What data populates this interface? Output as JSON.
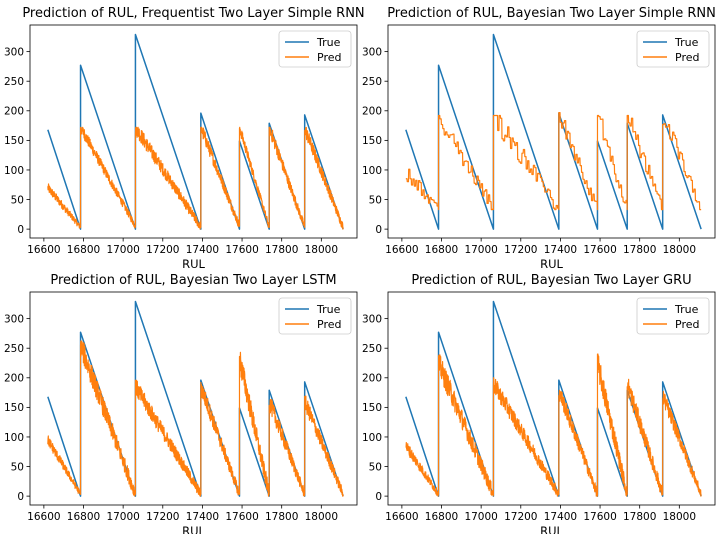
{
  "colors": {
    "true": "#1f77b4",
    "pred": "#ff7f0e"
  },
  "true_segments": [
    [
      [
        16620,
        168
      ],
      [
        16785,
        0
      ]
    ],
    [
      [
        16785,
        277
      ],
      [
        17062,
        0
      ]
    ],
    [
      [
        17062,
        329
      ],
      [
        17392,
        0
      ]
    ],
    [
      [
        17392,
        196
      ],
      [
        17587,
        0
      ]
    ],
    [
      [
        17587,
        149
      ],
      [
        17737,
        0
      ]
    ],
    [
      [
        17737,
        179
      ],
      [
        17916,
        0
      ]
    ],
    [
      [
        17916,
        193
      ],
      [
        18110,
        0
      ]
    ]
  ],
  "chart_data": [
    {
      "type": "line",
      "title": "Prediction of RUL, Frequentist Two Layer Simple RNN",
      "xlabel": "RUL",
      "ylabel": "",
      "xlim": [
        16530,
        18180
      ],
      "ylim": [
        -15,
        345
      ],
      "xticks": [
        16600,
        16800,
        17000,
        17200,
        17400,
        17600,
        17800,
        18000
      ],
      "yticks": [
        0,
        50,
        100,
        150,
        200,
        250,
        300
      ],
      "legend": {
        "position": "top-right",
        "entries": [
          "True",
          "Pred"
        ]
      },
      "series": [
        {
          "name": "True",
          "color": "#1f77b4"
        },
        {
          "name": "Pred",
          "color": "#ff7f0e",
          "segments": [
            {
              "x0": 16620,
              "x1": 16785,
              "start": 70,
              "end": 3,
              "cap": 200,
              "noise": 8
            },
            {
              "x0": 16785,
              "x1": 17062,
              "start": 172,
              "end": 5,
              "cap": 172,
              "noise": 10
            },
            {
              "x0": 17062,
              "x1": 17392,
              "start": 172,
              "end": 3,
              "cap": 172,
              "noise": 13
            },
            {
              "x0": 17392,
              "x1": 17587,
              "start": 172,
              "end": 5,
              "cap": 172,
              "noise": 12
            },
            {
              "x0": 17587,
              "x1": 17737,
              "start": 172,
              "end": 3,
              "cap": 172,
              "noise": 9
            },
            {
              "x0": 17737,
              "x1": 17916,
              "start": 172,
              "end": 3,
              "cap": 172,
              "noise": 12
            },
            {
              "x0": 17916,
              "x1": 18110,
              "start": 170,
              "end": 3,
              "cap": 172,
              "noise": 12
            }
          ]
        }
      ]
    },
    {
      "type": "line",
      "title": "Prediction of RUL, Bayesian Two Layer Simple RNN",
      "xlabel": "RUL",
      "ylabel": "",
      "xlim": [
        16530,
        18180
      ],
      "ylim": [
        -15,
        345
      ],
      "xticks": [
        16600,
        16800,
        17000,
        17200,
        17400,
        17600,
        17800,
        18000
      ],
      "yticks": [
        0,
        50,
        100,
        150,
        200,
        250,
        300
      ],
      "legend": {
        "position": "top-right",
        "entries": [
          "True",
          "Pred"
        ]
      },
      "series": [
        {
          "name": "True",
          "color": "#1f77b4"
        },
        {
          "name": "Pred",
          "color": "#ff7f0e",
          "segments": [
            {
              "x0": 16620,
              "x1": 16785,
              "start": 95,
              "end": 33,
              "floor": 33,
              "cap": 105,
              "noise": 14,
              "step": 6
            },
            {
              "x0": 16785,
              "x1": 17062,
              "start": 192,
              "end": 33,
              "floor": 33,
              "cap": 192,
              "noise": 18,
              "step": 6
            },
            {
              "x0": 17062,
              "x1": 17392,
              "start": 192,
              "end": 33,
              "floor": 33,
              "cap": 192,
              "noise": 20,
              "step": 6
            },
            {
              "x0": 17392,
              "x1": 17587,
              "start": 192,
              "end": 33,
              "floor": 33,
              "cap": 197,
              "noise": 18,
              "step": 6
            },
            {
              "x0": 17587,
              "x1": 17737,
              "start": 192,
              "end": 33,
              "floor": 33,
              "cap": 192,
              "noise": 18,
              "step": 6
            },
            {
              "x0": 17737,
              "x1": 17916,
              "start": 192,
              "end": 33,
              "floor": 33,
              "cap": 192,
              "noise": 18,
              "step": 6
            },
            {
              "x0": 17916,
              "x1": 18110,
              "start": 190,
              "end": 33,
              "floor": 33,
              "cap": 192,
              "noise": 18,
              "step": 6
            }
          ]
        }
      ]
    },
    {
      "type": "line",
      "title": "Prediction of RUL, Bayesian Two Layer LSTM",
      "xlabel": "RUL",
      "ylabel": "",
      "xlim": [
        16530,
        18180
      ],
      "ylim": [
        -15,
        345
      ],
      "xticks": [
        16600,
        16800,
        17000,
        17200,
        17400,
        17600,
        17800,
        18000
      ],
      "yticks": [
        0,
        50,
        100,
        150,
        200,
        250,
        300
      ],
      "legend": {
        "position": "top-right",
        "entries": [
          "True",
          "Pred"
        ]
      },
      "series": [
        {
          "name": "True",
          "color": "#1f77b4"
        },
        {
          "name": "Pred",
          "color": "#ff7f0e",
          "segments": [
            {
              "x0": 16620,
              "x1": 16785,
              "start": 95,
              "end": 3,
              "cap": 105,
              "noise": 9
            },
            {
              "x0": 16785,
              "x1": 17062,
              "start": 255,
              "end": 3,
              "cap": 262,
              "noise": 20
            },
            {
              "x0": 17062,
              "x1": 17392,
              "start": 185,
              "end": 3,
              "cap": 198,
              "noise": 15
            },
            {
              "x0": 17392,
              "x1": 17587,
              "start": 185,
              "end": 3,
              "cap": 192,
              "noise": 15
            },
            {
              "x0": 17587,
              "x1": 17737,
              "start": 232,
              "end": 3,
              "cap": 247,
              "noise": 22
            },
            {
              "x0": 17737,
              "x1": 17916,
              "start": 160,
              "end": 3,
              "cap": 168,
              "noise": 15
            },
            {
              "x0": 17916,
              "x1": 18110,
              "start": 160,
              "end": 3,
              "cap": 170,
              "noise": 14
            }
          ]
        }
      ]
    },
    {
      "type": "line",
      "title": "Prediction of RUL, Bayesian Two Layer GRU",
      "xlabel": "RUL",
      "ylabel": "",
      "xlim": [
        16530,
        18180
      ],
      "ylim": [
        -15,
        345
      ],
      "xticks": [
        16600,
        16800,
        17000,
        17200,
        17400,
        17600,
        17800,
        18000
      ],
      "yticks": [
        0,
        50,
        100,
        150,
        200,
        250,
        300
      ],
      "legend": {
        "position": "top-right",
        "entries": [
          "True",
          "Pred"
        ]
      },
      "series": [
        {
          "name": "True",
          "color": "#1f77b4"
        },
        {
          "name": "Pred",
          "color": "#ff7f0e",
          "segments": [
            {
              "x0": 16620,
              "x1": 16785,
              "start": 85,
              "end": 3,
              "cap": 100,
              "noise": 10
            },
            {
              "x0": 16785,
              "x1": 17062,
              "start": 225,
              "end": 3,
              "cap": 240,
              "noise": 20
            },
            {
              "x0": 17062,
              "x1": 17392,
              "start": 190,
              "end": 3,
              "cap": 205,
              "noise": 15
            },
            {
              "x0": 17392,
              "x1": 17587,
              "start": 178,
              "end": 3,
              "cap": 185,
              "noise": 15
            },
            {
              "x0": 17587,
              "x1": 17737,
              "start": 225,
              "end": 3,
              "cap": 240,
              "noise": 22
            },
            {
              "x0": 17737,
              "x1": 17916,
              "start": 190,
              "end": 3,
              "cap": 212,
              "noise": 18
            },
            {
              "x0": 17916,
              "x1": 18110,
              "start": 170,
              "end": 3,
              "cap": 180,
              "noise": 14
            }
          ]
        }
      ]
    }
  ]
}
